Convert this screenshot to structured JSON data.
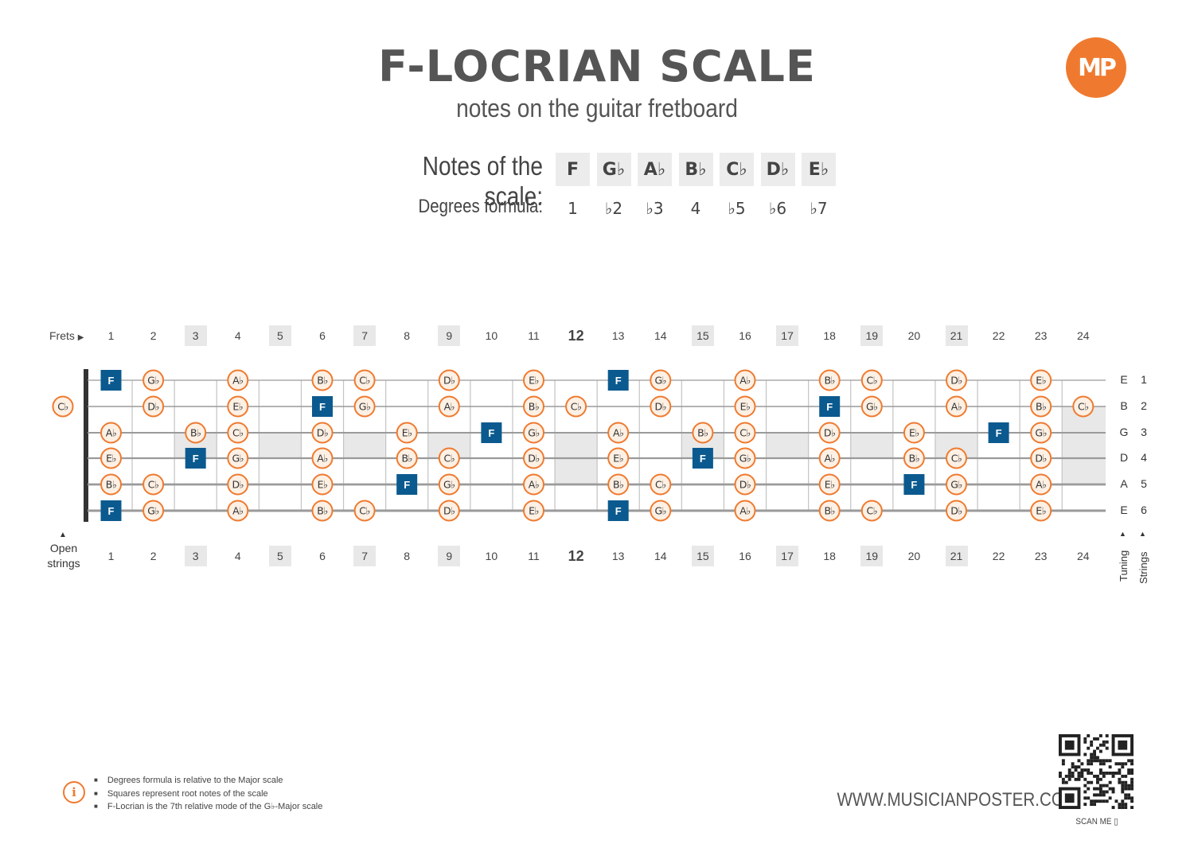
{
  "header": {
    "title": "F-LOCRIAN SCALE",
    "subtitle": "notes on the guitar fretboard",
    "logo_text": "MP"
  },
  "scale": {
    "notes_label": "Notes of the scale:",
    "notes": [
      "F",
      "G♭",
      "A♭",
      "B♭",
      "C♭",
      "D♭",
      "E♭"
    ],
    "degrees_label": "Degrees formula:",
    "degrees": [
      "1",
      "♭2",
      "♭3",
      "4",
      "♭5",
      "♭6",
      "♭7"
    ]
  },
  "fretboard": {
    "frets_label": "Frets",
    "open_label_line1": "Open",
    "open_label_line2": "strings",
    "tuning_label": "Tuning",
    "strings_label": "Strings",
    "fret_numbers": [
      "1",
      "2",
      "3",
      "4",
      "5",
      "6",
      "7",
      "8",
      "9",
      "10",
      "11",
      "12",
      "13",
      "14",
      "15",
      "16",
      "17",
      "18",
      "19",
      "20",
      "21",
      "22",
      "23",
      "24"
    ],
    "marker_frets": [
      3,
      5,
      7,
      9,
      12,
      15,
      17,
      19,
      21
    ],
    "root_note": "F",
    "strings": [
      {
        "number": "1",
        "tuning": "E",
        "open": "",
        "frets": [
          "F",
          "Gb",
          "",
          "Ab",
          "",
          "Bb",
          "Cb",
          "",
          "Db",
          "",
          "Eb",
          "",
          "F",
          "Gb",
          "",
          "Ab",
          "",
          "Bb",
          "Cb",
          "",
          "Db",
          "",
          "Eb",
          ""
        ]
      },
      {
        "number": "2",
        "tuning": "B",
        "open": "Cb",
        "frets": [
          "",
          "Db",
          "",
          "Eb",
          "",
          "F",
          "Gb",
          "",
          "Ab",
          "",
          "Bb",
          "Cb",
          "",
          "Db",
          "",
          "Eb",
          "",
          "F",
          "Gb",
          "",
          "Ab",
          "",
          "Bb",
          "Cb"
        ]
      },
      {
        "number": "3",
        "tuning": "G",
        "open": "",
        "frets": [
          "Ab",
          "",
          "Bb",
          "Cb",
          "",
          "Db",
          "",
          "Eb",
          "",
          "F",
          "Gb",
          "",
          "Ab",
          "",
          "Bb",
          "Cb",
          "",
          "Db",
          "",
          "Eb",
          "",
          "F",
          "Gb",
          ""
        ]
      },
      {
        "number": "4",
        "tuning": "D",
        "open": "",
        "frets": [
          "Eb",
          "",
          "F",
          "Gb",
          "",
          "Ab",
          "",
          "Bb",
          "Cb",
          "",
          "Db",
          "",
          "Eb",
          "",
          "F",
          "Gb",
          "",
          "Ab",
          "",
          "Bb",
          "Cb",
          "",
          "Db",
          ""
        ]
      },
      {
        "number": "5",
        "tuning": "A",
        "open": "",
        "frets": [
          "Bb",
          "Cb",
          "",
          "Db",
          "",
          "Eb",
          "",
          "F",
          "Gb",
          "",
          "Ab",
          "",
          "Bb",
          "Cb",
          "",
          "Db",
          "",
          "Eb",
          "",
          "F",
          "Gb",
          "",
          "Ab",
          ""
        ]
      },
      {
        "number": "6",
        "tuning": "E",
        "open": "",
        "frets": [
          "F",
          "Gb",
          "",
          "Ab",
          "",
          "Bb",
          "Cb",
          "",
          "Db",
          "",
          "Eb",
          "",
          "F",
          "Gb",
          "",
          "Ab",
          "",
          "Bb",
          "Cb",
          "",
          "Db",
          "",
          "Eb",
          ""
        ]
      }
    ]
  },
  "footer": {
    "notes": [
      "Degrees formula is relative to the Major scale",
      "Squares represent root notes of the scale",
      "F-Locrian is the 7th relative mode of the G♭-Major scale"
    ],
    "website": "WWW.MUSICIANPOSTER.COM",
    "scan_label": "SCAN ME ▯"
  },
  "colors": {
    "accent": "#ef7a2f",
    "root": "#0b5a8f",
    "note_fill": "#fdf0e4",
    "title": "#555555",
    "marker_shade": "#e8e8e8"
  }
}
